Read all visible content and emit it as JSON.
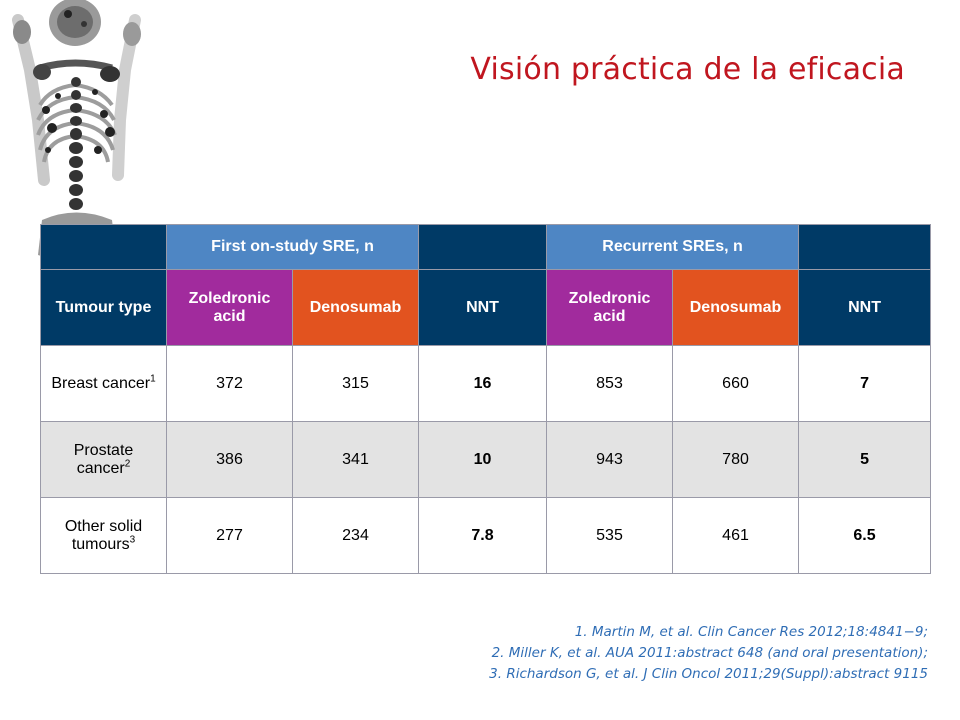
{
  "title": "Visión práctica de la eficacia",
  "table": {
    "group_headers": {
      "first": "First on-study SRE, n",
      "recurrent": "Recurrent SREs, n"
    },
    "column_headers": {
      "tumour_type": "Tumour type",
      "zoledronic_1": "Zoledronic acid",
      "denosumab_1": "Denosumab",
      "nnt_1": "NNT",
      "zoledronic_2": "Zoledronic acid",
      "denosumab_2": "Denosumab",
      "nnt_2": "NNT"
    },
    "rows": [
      {
        "label": "Breast cancer",
        "ref": "1",
        "zol_first": "372",
        "den_first": "315",
        "nnt_first": "16",
        "zol_rec": "853",
        "den_rec": "660",
        "nnt_rec": "7"
      },
      {
        "label": "Prostate cancer",
        "ref": "2",
        "zol_first": "386",
        "den_first": "341",
        "nnt_first": "10",
        "zol_rec": "943",
        "den_rec": "780",
        "nnt_rec": "5"
      },
      {
        "label": "Other solid tumours",
        "ref": "3",
        "zol_first": "277",
        "den_first": "234",
        "nnt_first": "7.8",
        "zol_rec": "535",
        "den_rec": "461",
        "nnt_rec": "6.5"
      }
    ]
  },
  "references": [
    "1. Martin M, et al. Clin Cancer Res 2012;18:4841−9;",
    "2. Miller K, et al. AUA 2011:abstract 648 (and oral presentation);",
    "3. Richardson G, et al. J Clin Oncol 2011;29(Suppl):abstract 9115"
  ],
  "colors": {
    "title": "#c0161f",
    "navy": "#003a66",
    "blue": "#4e86c4",
    "purple": "#a12b9d",
    "orange": "#e2531f",
    "row_grey": "#e3e3e3",
    "references": "#2f6db5"
  },
  "decorative_image": "bone-scan-skeleton-image"
}
